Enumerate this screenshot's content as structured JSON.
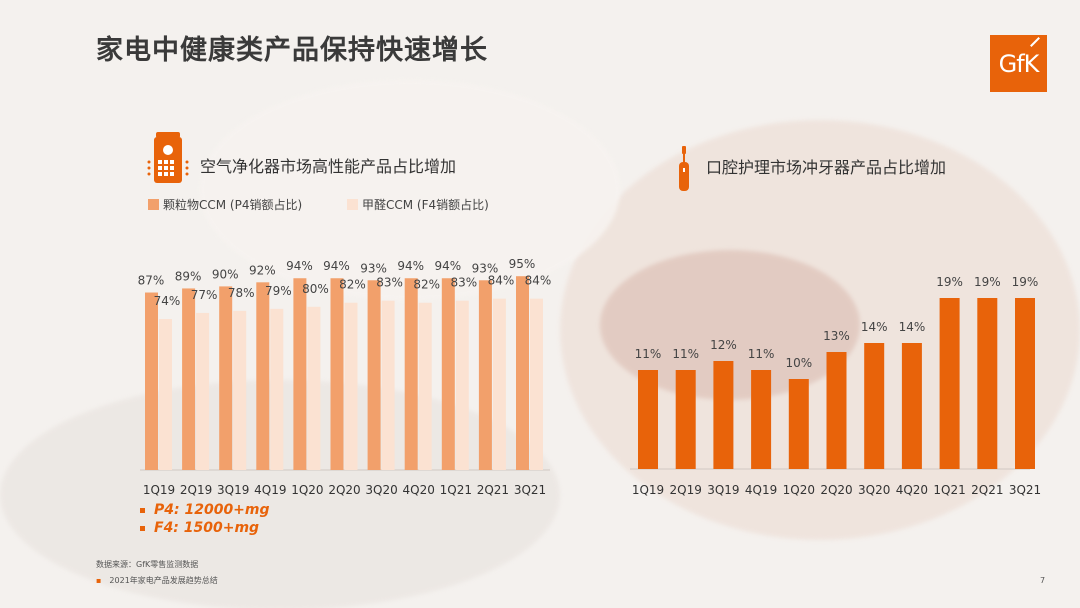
{
  "title": "家电中健康类产品保持快速增长",
  "logo": "GfK",
  "colors": {
    "accent": "#e8630a",
    "particle": "#f2a06b",
    "formaldehyde": "#fbe2d2",
    "oral": "#e8630a"
  },
  "air_purifier": {
    "icon": "air-purifier-icon",
    "title": "空气净化器市场高性能产品占比增加",
    "notes": [
      "P4: 12000+mg",
      "F4: 1500+mg"
    ]
  },
  "oral_care": {
    "icon": "electric-toothbrush-icon",
    "title": "口腔护理市场冲牙器产品占比增加"
  },
  "footer": {
    "source": "数据来源：GfK零售监测数据",
    "report": "2021年家电产品发展趋势总结",
    "bullet": "▪"
  },
  "page_number": "7",
  "chart_data": [
    {
      "type": "bar",
      "categories": [
        "1Q19",
        "2Q19",
        "3Q19",
        "4Q19",
        "1Q20",
        "2Q20",
        "3Q20",
        "4Q20",
        "1Q21",
        "2Q21",
        "3Q21"
      ],
      "series": [
        {
          "name": "颗粒物CCM (P4销额占比)",
          "values": [
            87,
            89,
            90,
            92,
            94,
            94,
            93,
            94,
            94,
            93,
            95
          ],
          "labels": [
            "87%",
            "89%",
            "90%",
            "92%",
            "94%",
            "94%",
            "93%",
            "94%",
            "94%",
            "93%",
            "95%"
          ]
        },
        {
          "name": "甲醛CCM (F4销额占比)",
          "values": [
            74,
            77,
            78,
            79,
            80,
            82,
            83,
            82,
            83,
            84,
            84
          ],
          "labels": [
            "74%",
            "77%",
            "78%",
            "79%",
            "80%",
            "82%",
            "83%",
            "82%",
            "83%",
            "84%",
            "84%"
          ]
        }
      ],
      "ylim": [
        0,
        100
      ]
    },
    {
      "type": "bar",
      "categories": [
        "1Q19",
        "2Q19",
        "3Q19",
        "4Q19",
        "1Q20",
        "2Q20",
        "3Q20",
        "4Q20",
        "1Q21",
        "2Q21",
        "3Q21"
      ],
      "series": [
        {
          "values": [
            11,
            11,
            12,
            11,
            10,
            13,
            14,
            14,
            19,
            19,
            19
          ],
          "labels": [
            "11%",
            "11%",
            "12%",
            "11%",
            "10%",
            "13%",
            "14%",
            "14%",
            "19%",
            "19%",
            "19%"
          ]
        }
      ],
      "ylim": [
        0,
        25
      ]
    }
  ]
}
